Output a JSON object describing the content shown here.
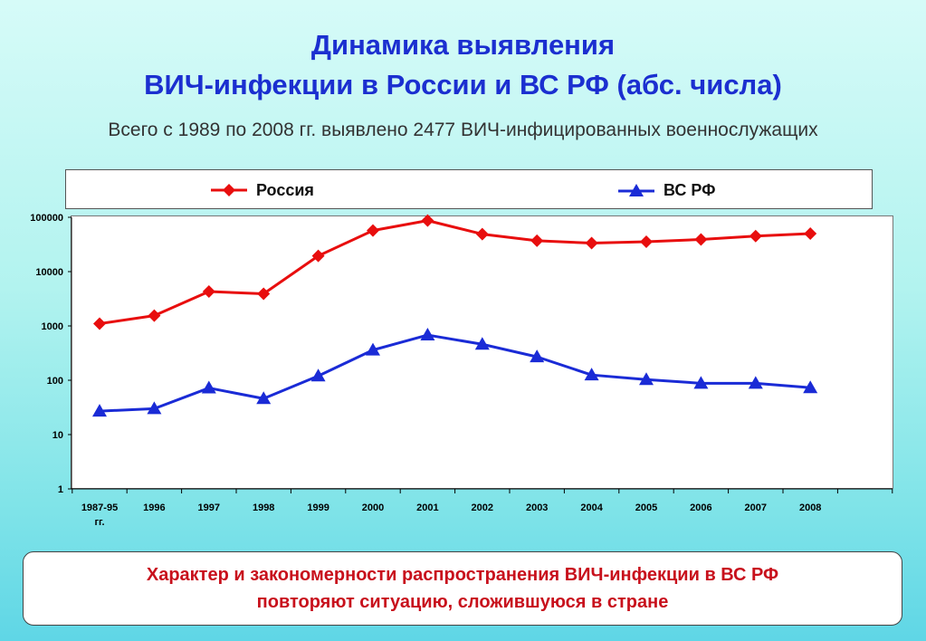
{
  "title_line1": "Динамика выявления",
  "title_line2": "ВИЧ-инфекции в России и ВС РФ (абс. числа)",
  "subtitle": "Всего с 1989 по 2008 гг. выявлено 2477 ВИЧ-инфицированных военнослужащих",
  "conclusion_line1": "Характер и закономерности распространения ВИЧ-инфекции в ВС РФ",
  "conclusion_line2": "повторяют ситуацию, сложившуюся в стране",
  "colors": {
    "russia": "#e80e0e",
    "military": "#1a2bd6",
    "title": "#1b2fd0",
    "conclusion": "#c8101c"
  },
  "chart_data": {
    "type": "line",
    "y_scale": "log",
    "ylim": [
      1,
      100000
    ],
    "y_ticks": [
      "1",
      "10",
      "100",
      "1000",
      "10000",
      "100000"
    ],
    "categories": [
      "1987-95 гг.",
      "1996",
      "1997",
      "1998",
      "1999",
      "2000",
      "2001",
      "2002",
      "2003",
      "2004",
      "2005",
      "2006",
      "2007",
      "2008"
    ],
    "legend_position": "top",
    "grid": false,
    "series": [
      {
        "name": "Россия",
        "marker": "diamond",
        "color": "#e80e0e",
        "values": [
          1100,
          1550,
          4300,
          3900,
          19500,
          57000,
          87000,
          49000,
          37000,
          33500,
          35500,
          39000,
          45000,
          50000
        ]
      },
      {
        "name": "ВС РФ",
        "marker": "triangle",
        "color": "#1a2bd6",
        "values": [
          27,
          30,
          72,
          46,
          120,
          360,
          680,
          460,
          270,
          125,
          103,
          88,
          88,
          73
        ]
      }
    ]
  }
}
